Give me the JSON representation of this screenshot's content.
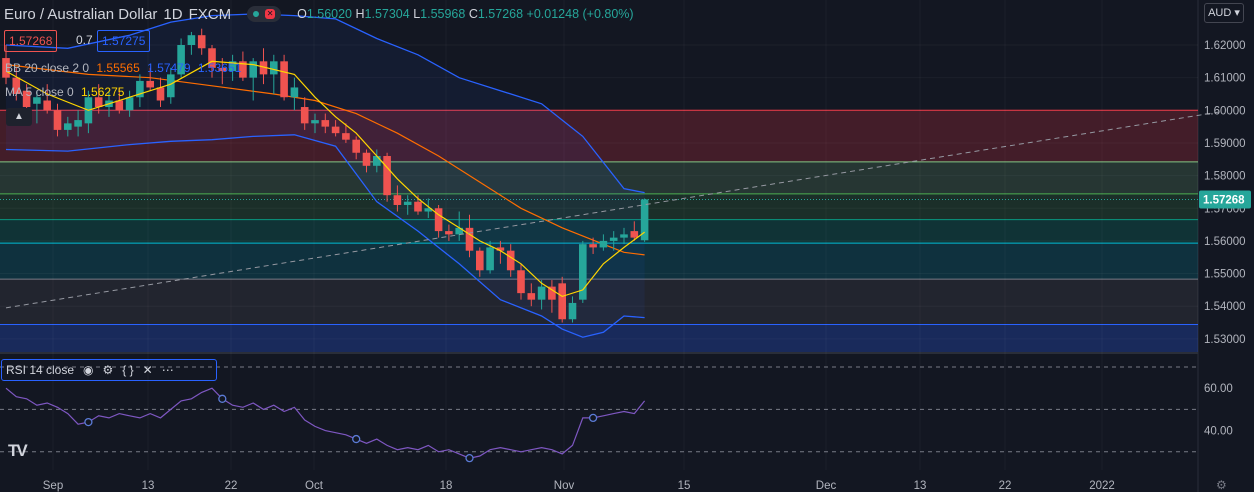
{
  "header": {
    "symbol_title": "Euro / Australian Dollar",
    "interval": "1D",
    "source": "FXCM",
    "ohlc": {
      "o_label": "O",
      "o": "1.56020",
      "h_label": "H",
      "h": "1.57304",
      "l_label": "L",
      "l": "1.55968",
      "c_label": "C",
      "c": "1.57268",
      "change": "+0.01248 (+0.80%)"
    }
  },
  "quote": {
    "sell": "1.57268",
    "spread": "0.7",
    "buy": "1.57275"
  },
  "legends": {
    "bb": {
      "name": "BB 20 close 2 0",
      "basis": "1.55565",
      "upper": "1.57479",
      "lower": "1.53651"
    },
    "ma": {
      "name": "MA 5 close 0",
      "value": "1.56275"
    },
    "rsi": {
      "name": "RSI 14 close"
    }
  },
  "currency_button": "AUD",
  "icons": {
    "eye": "eye-icon",
    "settings": "gear-icon",
    "source": "braces-icon",
    "remove": "close-icon",
    "more": "more-icon",
    "collapse": "chevron-up-icon",
    "logo": "tradingview-logo-icon"
  },
  "colors": {
    "up": "#26a69a",
    "down": "#ef5350",
    "bb_band": "#2962ff",
    "bb_basis": "#ff6d00",
    "ma": "#ffd600",
    "rsi": "#7e57c2",
    "background": "#131722"
  },
  "chart_data": {
    "type": "candlestick",
    "main_price_axis": {
      "ticks": [
        "1.62000",
        "1.61000",
        "1.60000",
        "1.59000",
        "1.58000",
        "1.57000",
        "1.56000",
        "1.55000",
        "1.54000",
        "1.53000"
      ],
      "last_price_label": "1.57268"
    },
    "x_axis_ticks": [
      "Sep",
      "13",
      "22",
      "Oct",
      "18",
      "Nov",
      "15",
      "Dec",
      "13",
      "22",
      "2022"
    ],
    "fib_levels": [
      1.6,
      1.5842,
      1.5744,
      1.5665,
      1.5593,
      1.5483,
      1.5344
    ],
    "trendline": {
      "from": [
        0,
        1.5395
      ],
      "to": [
        118,
        1.5996
      ]
    },
    "candles": [
      {
        "t": 0,
        "o": 1.616,
        "h": 1.62,
        "l": 1.608,
        "c": 1.61
      },
      {
        "t": 1,
        "o": 1.61,
        "h": 1.613,
        "l": 1.603,
        "c": 1.605
      },
      {
        "t": 2,
        "o": 1.606,
        "h": 1.608,
        "l": 1.599,
        "c": 1.601
      },
      {
        "t": 3,
        "o": 1.602,
        "h": 1.606,
        "l": 1.596,
        "c": 1.604
      },
      {
        "t": 4,
        "o": 1.603,
        "h": 1.608,
        "l": 1.599,
        "c": 1.6
      },
      {
        "t": 5,
        "o": 1.6,
        "h": 1.602,
        "l": 1.592,
        "c": 1.594
      },
      {
        "t": 6,
        "o": 1.594,
        "h": 1.598,
        "l": 1.592,
        "c": 1.596
      },
      {
        "t": 7,
        "o": 1.595,
        "h": 1.6,
        "l": 1.592,
        "c": 1.597
      },
      {
        "t": 8,
        "o": 1.596,
        "h": 1.606,
        "l": 1.593,
        "c": 1.604
      },
      {
        "t": 9,
        "o": 1.604,
        "h": 1.608,
        "l": 1.599,
        "c": 1.601
      },
      {
        "t": 10,
        "o": 1.601,
        "h": 1.606,
        "l": 1.598,
        "c": 1.603
      },
      {
        "t": 11,
        "o": 1.603,
        "h": 1.607,
        "l": 1.599,
        "c": 1.6
      },
      {
        "t": 12,
        "o": 1.6,
        "h": 1.606,
        "l": 1.598,
        "c": 1.604
      },
      {
        "t": 13,
        "o": 1.604,
        "h": 1.611,
        "l": 1.601,
        "c": 1.609
      },
      {
        "t": 14,
        "o": 1.609,
        "h": 1.613,
        "l": 1.606,
        "c": 1.607
      },
      {
        "t": 15,
        "o": 1.607,
        "h": 1.61,
        "l": 1.601,
        "c": 1.603
      },
      {
        "t": 16,
        "o": 1.604,
        "h": 1.613,
        "l": 1.602,
        "c": 1.611
      },
      {
        "t": 17,
        "o": 1.611,
        "h": 1.622,
        "l": 1.61,
        "c": 1.62
      },
      {
        "t": 18,
        "o": 1.62,
        "h": 1.624,
        "l": 1.617,
        "c": 1.623
      },
      {
        "t": 19,
        "o": 1.623,
        "h": 1.625,
        "l": 1.617,
        "c": 1.619
      },
      {
        "t": 20,
        "o": 1.619,
        "h": 1.62,
        "l": 1.61,
        "c": 1.613
      },
      {
        "t": 21,
        "o": 1.613,
        "h": 1.616,
        "l": 1.608,
        "c": 1.612
      },
      {
        "t": 22,
        "o": 1.612,
        "h": 1.617,
        "l": 1.609,
        "c": 1.615
      },
      {
        "t": 23,
        "o": 1.615,
        "h": 1.618,
        "l": 1.609,
        "c": 1.61
      },
      {
        "t": 24,
        "o": 1.61,
        "h": 1.616,
        "l": 1.603,
        "c": 1.615
      },
      {
        "t": 25,
        "o": 1.615,
        "h": 1.619,
        "l": 1.608,
        "c": 1.611
      },
      {
        "t": 26,
        "o": 1.611,
        "h": 1.617,
        "l": 1.605,
        "c": 1.615
      },
      {
        "t": 27,
        "o": 1.615,
        "h": 1.617,
        "l": 1.603,
        "c": 1.604
      },
      {
        "t": 28,
        "o": 1.604,
        "h": 1.61,
        "l": 1.6,
        "c": 1.607
      },
      {
        "t": 29,
        "o": 1.601,
        "h": 1.604,
        "l": 1.594,
        "c": 1.596
      },
      {
        "t": 30,
        "o": 1.596,
        "h": 1.599,
        "l": 1.593,
        "c": 1.597
      },
      {
        "t": 31,
        "o": 1.597,
        "h": 1.599,
        "l": 1.593,
        "c": 1.595
      },
      {
        "t": 32,
        "o": 1.595,
        "h": 1.597,
        "l": 1.592,
        "c": 1.593
      },
      {
        "t": 33,
        "o": 1.593,
        "h": 1.596,
        "l": 1.59,
        "c": 1.591
      },
      {
        "t": 34,
        "o": 1.591,
        "h": 1.592,
        "l": 1.585,
        "c": 1.587
      },
      {
        "t": 35,
        "o": 1.587,
        "h": 1.588,
        "l": 1.581,
        "c": 1.583
      },
      {
        "t": 36,
        "o": 1.583,
        "h": 1.588,
        "l": 1.581,
        "c": 1.586
      },
      {
        "t": 37,
        "o": 1.586,
        "h": 1.587,
        "l": 1.572,
        "c": 1.574
      },
      {
        "t": 38,
        "o": 1.574,
        "h": 1.577,
        "l": 1.569,
        "c": 1.571
      },
      {
        "t": 39,
        "o": 1.571,
        "h": 1.574,
        "l": 1.568,
        "c": 1.572
      },
      {
        "t": 40,
        "o": 1.572,
        "h": 1.574,
        "l": 1.568,
        "c": 1.569
      },
      {
        "t": 41,
        "o": 1.569,
        "h": 1.573,
        "l": 1.567,
        "c": 1.57
      },
      {
        "t": 42,
        "o": 1.57,
        "h": 1.571,
        "l": 1.561,
        "c": 1.563
      },
      {
        "t": 43,
        "o": 1.563,
        "h": 1.565,
        "l": 1.56,
        "c": 1.562
      },
      {
        "t": 44,
        "o": 1.562,
        "h": 1.569,
        "l": 1.56,
        "c": 1.564
      },
      {
        "t": 45,
        "o": 1.564,
        "h": 1.568,
        "l": 1.555,
        "c": 1.557
      },
      {
        "t": 46,
        "o": 1.557,
        "h": 1.558,
        "l": 1.549,
        "c": 1.551
      },
      {
        "t": 47,
        "o": 1.551,
        "h": 1.56,
        "l": 1.55,
        "c": 1.558
      },
      {
        "t": 48,
        "o": 1.558,
        "h": 1.56,
        "l": 1.553,
        "c": 1.557
      },
      {
        "t": 49,
        "o": 1.557,
        "h": 1.559,
        "l": 1.549,
        "c": 1.551
      },
      {
        "t": 50,
        "o": 1.551,
        "h": 1.553,
        "l": 1.542,
        "c": 1.544
      },
      {
        "t": 51,
        "o": 1.544,
        "h": 1.547,
        "l": 1.54,
        "c": 1.542
      },
      {
        "t": 52,
        "o": 1.542,
        "h": 1.548,
        "l": 1.539,
        "c": 1.546
      },
      {
        "t": 53,
        "o": 1.546,
        "h": 1.548,
        "l": 1.538,
        "c": 1.542
      },
      {
        "t": 54,
        "o": 1.547,
        "h": 1.549,
        "l": 1.535,
        "c": 1.536
      },
      {
        "t": 55,
        "o": 1.536,
        "h": 1.543,
        "l": 1.535,
        "c": 1.541
      },
      {
        "t": 56,
        "o": 1.542,
        "h": 1.56,
        "l": 1.541,
        "c": 1.559
      },
      {
        "t": 57,
        "o": 1.559,
        "h": 1.561,
        "l": 1.556,
        "c": 1.558
      },
      {
        "t": 58,
        "o": 1.558,
        "h": 1.562,
        "l": 1.557,
        "c": 1.56
      },
      {
        "t": 59,
        "o": 1.56,
        "h": 1.563,
        "l": 1.557,
        "c": 1.561
      },
      {
        "t": 60,
        "o": 1.561,
        "h": 1.564,
        "l": 1.559,
        "c": 1.562
      },
      {
        "t": 61,
        "o": 1.563,
        "h": 1.566,
        "l": 1.56,
        "c": 1.561
      },
      {
        "t": 62,
        "o": 1.5602,
        "h": 1.573,
        "l": 1.5597,
        "c": 1.5727
      }
    ],
    "bb_upper": [
      [
        0,
        1.62
      ],
      [
        6,
        1.619
      ],
      [
        12,
        1.623
      ],
      [
        16,
        1.627
      ],
      [
        20,
        1.629
      ],
      [
        24,
        1.6295
      ],
      [
        28,
        1.629
      ],
      [
        32,
        1.628
      ],
      [
        36,
        1.622
      ],
      [
        40,
        1.617
      ],
      [
        44,
        1.61
      ],
      [
        48,
        1.606
      ],
      [
        52,
        1.602
      ],
      [
        56,
        1.592
      ],
      [
        58,
        1.584
      ],
      [
        60,
        1.576
      ],
      [
        62,
        1.5748
      ]
    ],
    "bb_basis": [
      [
        0,
        1.614
      ],
      [
        8,
        1.611
      ],
      [
        14,
        1.61
      ],
      [
        20,
        1.6075
      ],
      [
        26,
        1.605
      ],
      [
        30,
        1.603
      ],
      [
        34,
        1.599
      ],
      [
        38,
        1.593
      ],
      [
        42,
        1.586
      ],
      [
        46,
        1.578
      ],
      [
        50,
        1.57
      ],
      [
        54,
        1.564
      ],
      [
        58,
        1.559
      ],
      [
        60,
        1.5565
      ],
      [
        62,
        1.5557
      ]
    ],
    "bb_lower": [
      [
        0,
        1.588
      ],
      [
        6,
        1.5875
      ],
      [
        12,
        1.5895
      ],
      [
        16,
        1.5905
      ],
      [
        20,
        1.591
      ],
      [
        24,
        1.592
      ],
      [
        28,
        1.5925
      ],
      [
        32,
        1.589
      ],
      [
        36,
        1.572
      ],
      [
        40,
        1.563
      ],
      [
        44,
        1.553
      ],
      [
        48,
        1.542
      ],
      [
        52,
        1.537
      ],
      [
        54,
        1.533
      ],
      [
        56,
        1.5305
      ],
      [
        58,
        1.532
      ],
      [
        60,
        1.537
      ],
      [
        62,
        1.5365
      ]
    ],
    "ma": [
      [
        0,
        1.612
      ],
      [
        4,
        1.605
      ],
      [
        8,
        1.6
      ],
      [
        12,
        1.604
      ],
      [
        16,
        1.608
      ],
      [
        20,
        1.615
      ],
      [
        24,
        1.614
      ],
      [
        28,
        1.611
      ],
      [
        30,
        1.604
      ],
      [
        32,
        1.598
      ],
      [
        34,
        1.593
      ],
      [
        36,
        1.586
      ],
      [
        38,
        1.579
      ],
      [
        40,
        1.573
      ],
      [
        42,
        1.568
      ],
      [
        44,
        1.564
      ],
      [
        46,
        1.56
      ],
      [
        48,
        1.557
      ],
      [
        50,
        1.553
      ],
      [
        52,
        1.547
      ],
      [
        54,
        1.543
      ],
      [
        56,
        1.545
      ],
      [
        58,
        1.553
      ],
      [
        60,
        1.558
      ],
      [
        62,
        1.5627
      ]
    ],
    "rsi": {
      "ticks": [
        "60.00",
        "40.00"
      ],
      "bands": [
        70,
        50,
        30
      ],
      "values": [
        [
          0,
          60
        ],
        [
          1,
          56
        ],
        [
          2,
          55
        ],
        [
          3,
          52
        ],
        [
          4,
          53
        ],
        [
          5,
          51
        ],
        [
          6,
          48
        ],
        [
          7,
          43
        ],
        [
          8,
          44
        ],
        [
          9,
          47
        ],
        [
          10,
          46
        ],
        [
          11,
          48
        ],
        [
          12,
          47
        ],
        [
          13,
          46
        ],
        [
          14,
          48
        ],
        [
          15,
          46
        ],
        [
          16,
          50
        ],
        [
          17,
          54
        ],
        [
          18,
          55
        ],
        [
          19,
          58
        ],
        [
          20,
          60
        ],
        [
          21,
          55
        ],
        [
          22,
          52
        ],
        [
          23,
          51
        ],
        [
          24,
          53
        ],
        [
          25,
          50
        ],
        [
          26,
          52
        ],
        [
          27,
          49
        ],
        [
          28,
          51
        ],
        [
          29,
          45
        ],
        [
          30,
          42
        ],
        [
          31,
          40
        ],
        [
          32,
          39
        ],
        [
          33,
          38
        ],
        [
          34,
          36
        ],
        [
          35,
          34
        ],
        [
          36,
          36
        ],
        [
          37,
          33
        ],
        [
          38,
          31
        ],
        [
          39,
          32
        ],
        [
          40,
          31
        ],
        [
          41,
          33
        ],
        [
          42,
          30
        ],
        [
          43,
          31
        ],
        [
          44,
          29
        ],
        [
          45,
          27
        ],
        [
          46,
          28
        ],
        [
          47,
          31
        ],
        [
          48,
          32
        ],
        [
          49,
          31
        ],
        [
          50,
          30
        ],
        [
          51,
          31
        ],
        [
          52,
          32
        ],
        [
          53,
          31
        ],
        [
          54,
          29
        ],
        [
          55,
          33
        ],
        [
          56,
          46
        ],
        [
          57,
          46
        ],
        [
          58,
          47
        ],
        [
          59,
          48
        ],
        [
          60,
          49
        ],
        [
          61,
          48
        ],
        [
          62,
          54
        ]
      ],
      "markers": [
        [
          8,
          44
        ],
        [
          21,
          55
        ],
        [
          34,
          36
        ],
        [
          45,
          27
        ],
        [
          57,
          46
        ]
      ]
    }
  }
}
